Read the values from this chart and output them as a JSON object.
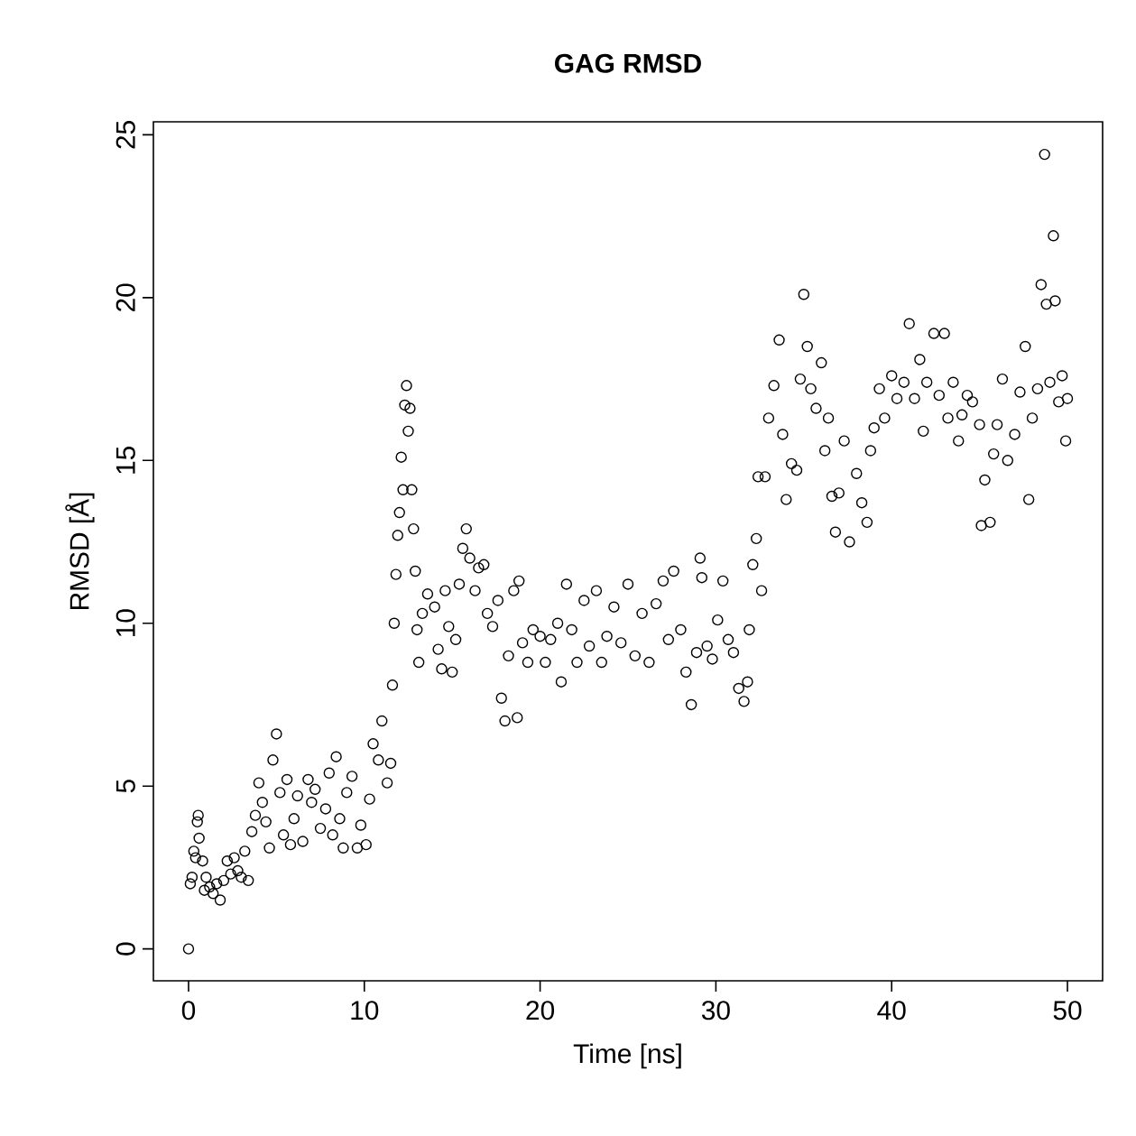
{
  "chart_data": {
    "type": "scatter",
    "title": "GAG RMSD",
    "xlabel": "Time [ns]",
    "ylabel": "RMSD [Å]",
    "xlim": [
      -2,
      52
    ],
    "ylim": [
      -0.98,
      25.4
    ],
    "xticks": [
      0,
      10,
      20,
      30,
      40,
      50
    ],
    "yticks": [
      0,
      5,
      10,
      15,
      20,
      25
    ],
    "marker": "circle",
    "grid": false,
    "series": [
      {
        "color": "#000000",
        "x": [
          0,
          0.1,
          0.2,
          0.3,
          0.4,
          0.5,
          0.55,
          0.6,
          0.8,
          0.9,
          1.0,
          1.2,
          1.4,
          1.6,
          1.8,
          2.0,
          2.2,
          2.4,
          2.6,
          2.8,
          3.0,
          3.2,
          3.4,
          3.6,
          3.8,
          4.0,
          4.2,
          4.4,
          4.6,
          4.8,
          5.0,
          5.2,
          5.4,
          5.6,
          5.8,
          6.0,
          6.2,
          6.5,
          6.8,
          7.0,
          7.2,
          7.5,
          7.8,
          8.0,
          8.2,
          8.4,
          8.6,
          8.8,
          9.0,
          9.3,
          9.6,
          9.8,
          10.1,
          10.3,
          10.5,
          10.8,
          11.0,
          11.3,
          11.5,
          11.6,
          11.7,
          11.8,
          11.9,
          12.0,
          12.1,
          12.2,
          12.3,
          12.4,
          12.5,
          12.6,
          12.7,
          12.8,
          12.9,
          13.0,
          13.1,
          13.3,
          13.6,
          14.0,
          14.2,
          14.4,
          14.6,
          14.8,
          15.0,
          15.2,
          15.4,
          15.6,
          15.8,
          16.0,
          16.3,
          16.5,
          16.8,
          17.0,
          17.3,
          17.6,
          17.8,
          18.0,
          18.2,
          18.5,
          18.7,
          18.8,
          19.0,
          19.3,
          19.6,
          20.0,
          20.3,
          20.6,
          21.0,
          21.2,
          21.5,
          21.8,
          22.1,
          22.5,
          22.8,
          23.2,
          23.5,
          23.8,
          24.2,
          24.6,
          25.0,
          25.4,
          25.8,
          26.2,
          26.6,
          27.0,
          27.3,
          27.6,
          28.0,
          28.3,
          28.6,
          28.9,
          29.1,
          29.2,
          29.5,
          29.8,
          30.1,
          30.4,
          30.7,
          31.0,
          31.3,
          31.6,
          31.8,
          31.9,
          32.1,
          32.3,
          32.4,
          32.6,
          32.8,
          33.0,
          33.3,
          33.6,
          33.8,
          34.0,
          34.3,
          34.6,
          34.8,
          35.0,
          35.2,
          35.4,
          35.7,
          36.0,
          36.2,
          36.4,
          36.6,
          36.8,
          37.0,
          37.3,
          37.6,
          38.0,
          38.3,
          38.6,
          38.8,
          39.0,
          39.3,
          39.6,
          40.0,
          40.3,
          40.7,
          41.0,
          41.3,
          41.6,
          41.8,
          42.0,
          42.4,
          42.7,
          43.0,
          43.2,
          43.5,
          43.8,
          44.0,
          44.3,
          44.6,
          45.0,
          45.1,
          45.3,
          45.6,
          45.8,
          46.0,
          46.3,
          46.6,
          47.0,
          47.3,
          47.6,
          47.8,
          48.0,
          48.3,
          48.5,
          48.7,
          48.8,
          49.0,
          49.2,
          49.3,
          49.5,
          49.7,
          49.9,
          50.0
        ],
        "values": [
          0,
          2.0,
          2.2,
          3.0,
          2.8,
          3.9,
          4.1,
          3.4,
          2.7,
          1.8,
          2.2,
          1.9,
          1.7,
          2.0,
          1.5,
          2.1,
          2.7,
          2.3,
          2.8,
          2.4,
          2.2,
          3.0,
          2.1,
          3.6,
          4.1,
          5.1,
          4.5,
          3.9,
          3.1,
          5.8,
          6.6,
          4.8,
          3.5,
          5.2,
          3.2,
          4.0,
          4.7,
          3.3,
          5.2,
          4.5,
          4.9,
          3.7,
          4.3,
          5.4,
          3.5,
          5.9,
          4.0,
          3.1,
          4.8,
          5.3,
          3.1,
          3.8,
          3.2,
          4.6,
          6.3,
          5.8,
          7.0,
          5.1,
          5.7,
          8.1,
          10.0,
          11.5,
          12.7,
          13.4,
          15.1,
          14.1,
          16.7,
          17.3,
          15.9,
          16.6,
          14.1,
          12.9,
          11.6,
          9.8,
          8.8,
          10.3,
          10.9,
          10.5,
          9.2,
          8.6,
          11.0,
          9.9,
          8.5,
          9.5,
          11.2,
          12.3,
          12.9,
          12.0,
          11.0,
          11.7,
          11.8,
          10.3,
          9.9,
          10.7,
          7.7,
          7.0,
          9.0,
          11.0,
          7.1,
          11.3,
          9.4,
          8.8,
          9.8,
          9.6,
          8.8,
          9.5,
          10.0,
          8.2,
          11.2,
          9.8,
          8.8,
          10.7,
          9.3,
          11.0,
          8.8,
          9.6,
          10.5,
          9.4,
          11.2,
          9.0,
          10.3,
          8.8,
          10.6,
          11.3,
          9.5,
          11.6,
          9.8,
          8.5,
          7.5,
          9.1,
          12.0,
          11.4,
          9.3,
          8.9,
          10.1,
          11.3,
          9.5,
          9.1,
          8.0,
          7.6,
          8.2,
          9.8,
          11.8,
          12.6,
          14.5,
          11.0,
          14.5,
          16.3,
          17.3,
          18.7,
          15.8,
          13.8,
          14.9,
          14.7,
          17.5,
          20.1,
          18.5,
          17.2,
          16.6,
          18.0,
          15.3,
          16.3,
          13.9,
          12.8,
          14.0,
          15.6,
          12.5,
          14.6,
          13.7,
          13.1,
          15.3,
          16.0,
          17.2,
          16.3,
          17.6,
          16.9,
          17.4,
          19.2,
          16.9,
          18.1,
          15.9,
          17.4,
          18.9,
          17.0,
          18.9,
          16.3,
          17.4,
          15.6,
          16.4,
          17.0,
          16.8,
          16.1,
          13.0,
          14.4,
          13.1,
          15.2,
          16.1,
          17.5,
          15.0,
          15.8,
          17.1,
          18.5,
          13.8,
          16.3,
          17.2,
          20.4,
          24.4,
          19.8,
          17.4,
          21.9,
          19.9,
          16.8,
          17.6,
          15.6,
          16.9
        ]
      }
    ]
  }
}
